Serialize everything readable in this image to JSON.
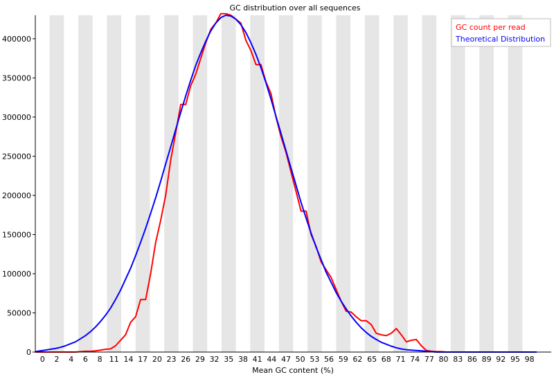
{
  "chart_data": {
    "type": "line",
    "title": "GC distribution over all sequences",
    "xlabel": "Mean GC content (%)",
    "ylabel": "",
    "xlim": [
      0,
      100
    ],
    "ylim": [
      0,
      430000
    ],
    "x_tick_labels": [
      "0",
      "2",
      "4",
      "6",
      "8",
      "11",
      "14",
      "17",
      "20",
      "23",
      "26",
      "29",
      "32",
      "35",
      "38",
      "41",
      "44",
      "47",
      "50",
      "53",
      "56",
      "59",
      "62",
      "65",
      "68",
      "71",
      "74",
      "77",
      "80",
      "83",
      "86",
      "89",
      "92",
      "95",
      "98"
    ],
    "y_ticks": [
      0,
      50000,
      100000,
      150000,
      200000,
      250000,
      300000,
      350000,
      400000
    ],
    "y_tick_labels": [
      "0",
      "50000",
      "100000",
      "150000",
      "200000",
      "250000",
      "300000",
      "350000",
      "400000"
    ],
    "grid": "alternating vertical bands",
    "legend_position": "top-right",
    "series": [
      {
        "name": "GC count per read",
        "color": "#ff0000",
        "x": [
          0,
          1,
          2,
          3,
          4,
          5,
          6,
          7,
          8,
          9,
          10,
          11,
          12,
          13,
          14,
          15,
          16,
          17,
          18,
          19,
          20,
          21,
          22,
          23,
          24,
          25,
          26,
          27,
          28,
          29,
          30,
          31,
          32,
          33,
          34,
          35,
          36,
          37,
          38,
          39,
          40,
          41,
          42,
          43,
          44,
          45,
          46,
          47,
          48,
          49,
          50,
          51,
          52,
          53,
          54,
          55,
          56,
          57,
          58,
          59,
          60,
          61,
          62,
          63,
          64,
          65,
          66,
          67,
          68,
          69,
          70,
          71,
          72,
          73,
          74,
          75,
          76,
          77,
          78,
          79,
          80,
          81,
          82,
          83,
          84,
          85,
          86,
          87,
          88,
          89,
          90,
          91,
          92,
          93,
          94,
          95,
          96,
          97,
          98,
          99,
          100
        ],
        "values": [
          0,
          0,
          0,
          0,
          0,
          0,
          0,
          0,
          0,
          500,
          1000,
          1000,
          1500,
          2500,
          3500,
          4000,
          8000,
          15000,
          22000,
          38000,
          45000,
          67000,
          67000,
          100000,
          140000,
          168000,
          200000,
          245000,
          280000,
          316000,
          316000,
          340000,
          355000,
          375000,
          395000,
          412000,
          420000,
          432000,
          432000,
          430000,
          425000,
          420000,
          398000,
          385000,
          367000,
          367000,
          345000,
          330000,
          300000,
          275000,
          255000,
          230000,
          205000,
          180000,
          180000,
          150000,
          135000,
          115000,
          105000,
          95000,
          80000,
          65000,
          52000,
          51000,
          45000,
          40000,
          40000,
          35000,
          24000,
          22000,
          21000,
          24000,
          30000,
          22000,
          13000,
          15000,
          16000,
          8000,
          2000,
          1000,
          500,
          500,
          0,
          0,
          0,
          0,
          0,
          0,
          0,
          0,
          0,
          0,
          0,
          0,
          0,
          0,
          0,
          0,
          0,
          0,
          0
        ]
      },
      {
        "name": "Theoretical Distribution",
        "color": "#0000ff",
        "x": [
          0,
          1,
          2,
          3,
          4,
          5,
          6,
          7,
          8,
          9,
          10,
          11,
          12,
          13,
          14,
          15,
          16,
          17,
          18,
          19,
          20,
          21,
          22,
          23,
          24,
          25,
          26,
          27,
          28,
          29,
          30,
          31,
          32,
          33,
          34,
          35,
          36,
          37,
          38,
          39,
          40,
          41,
          42,
          43,
          44,
          45,
          46,
          47,
          48,
          49,
          50,
          51,
          52,
          53,
          54,
          55,
          56,
          57,
          58,
          59,
          60,
          61,
          62,
          63,
          64,
          65,
          66,
          67,
          68,
          69,
          70,
          71,
          72,
          73,
          74,
          75,
          76,
          77,
          78,
          79,
          80,
          81,
          82,
          83,
          84,
          85,
          86,
          87,
          88,
          89,
          90,
          91,
          92,
          93,
          94,
          95,
          96,
          97,
          98,
          99,
          100
        ],
        "values": [
          500,
          1500,
          2500,
          3500,
          4500,
          6000,
          8000,
          10500,
          13000,
          17000,
          21000,
          26000,
          32000,
          39000,
          47000,
          56000,
          67000,
          79000,
          93000,
          107000,
          123000,
          140000,
          158000,
          177000,
          197000,
          218000,
          240000,
          262000,
          284000,
          306000,
          327000,
          347000,
          366000,
          382000,
          397000,
          410000,
          420000,
          427000,
          430000,
          429000,
          425000,
          418000,
          408000,
          395000,
          380000,
          363000,
          344000,
          323000,
          301000,
          279000,
          257000,
          235000,
          213000,
          191000,
          171000,
          152000,
          134000,
          118000,
          102000,
          89000,
          76000,
          65000,
          55000,
          46000,
          38000,
          31000,
          25000,
          20000,
          16000,
          12500,
          10000,
          7500,
          5500,
          4000,
          3000,
          2500,
          2000,
          1500,
          1000,
          500,
          0,
          0,
          0,
          0,
          0,
          0,
          0,
          0,
          0,
          0,
          0,
          0,
          0,
          0,
          0,
          0,
          0,
          0,
          0,
          0,
          0
        ]
      }
    ]
  }
}
